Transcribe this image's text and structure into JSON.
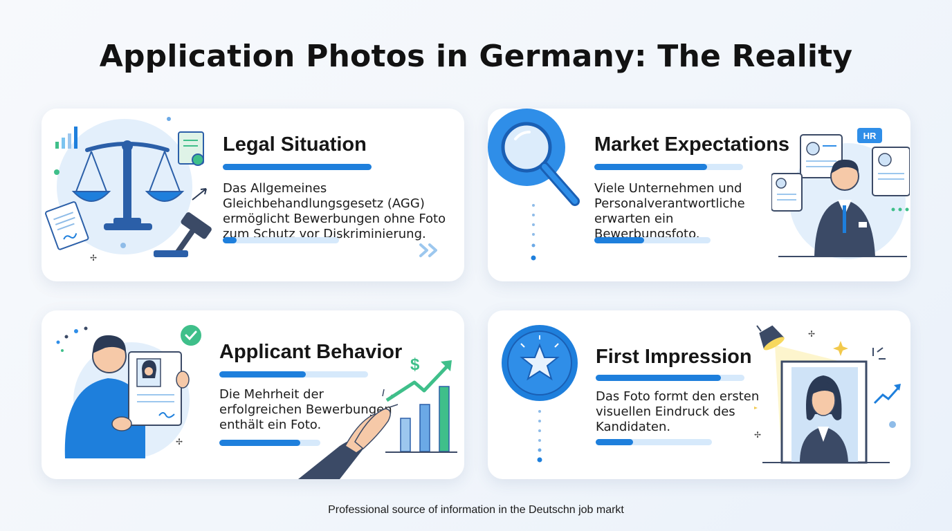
{
  "title": "Application Photos in Germany: The Reality",
  "cards": [
    {
      "title": "Legal Situation",
      "text": "Das Allgemeines Gleichbehandlungsgesetz (AGG) ermöglicht Bewerbungen ohne Foto zum Schutz vor Diskriminierung.",
      "top_bar_fill": 1.0,
      "bottom_bar_fill": 0.12,
      "icon": "scales-of-justice-icon"
    },
    {
      "title": "Market Expectations",
      "text": "Viele Unternehmen und Personalverantwortliche erwarten ein Bewerbungsfoto.",
      "top_bar_fill": 0.76,
      "bottom_bar_fill": 0.43,
      "icon": "magnifying-glass-icon",
      "badge": "HR"
    },
    {
      "title": "Applicant Behavior",
      "text": "Die Mehrheit der erfolgreichen Bewerbungen enthält ein Foto.",
      "top_bar_fill": 0.58,
      "bottom_bar_fill": 0.8,
      "icon": "applicant-with-cv-icon",
      "currency_symbol": "$"
    },
    {
      "title": "First Impression",
      "text": "Das Foto formt den ersten visuellen Eindruck des Kandidaten.",
      "top_bar_fill": 0.84,
      "bottom_bar_fill": 0.32,
      "icon": "star-badge-icon"
    }
  ],
  "footer": "Professional source of information in the Deutschn job markt",
  "colors": {
    "accent": "#1e7fdc",
    "accent_light": "#d6e9fb",
    "icon_blue": "#2f8ee8",
    "navy": "#3b4a66",
    "green": "#3fbf8a"
  }
}
